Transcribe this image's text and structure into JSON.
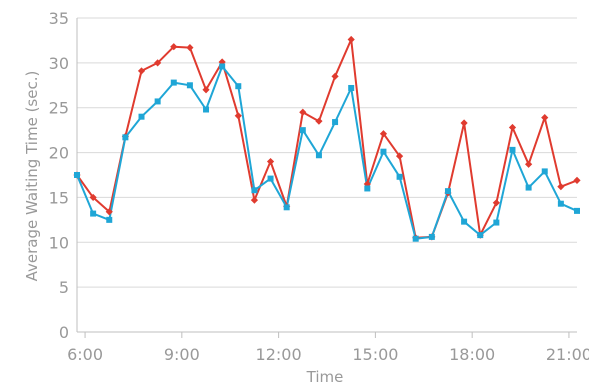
{
  "chart_data": {
    "type": "line",
    "xlabel": "Time",
    "ylabel": "Average Waiting Time (sec.)",
    "xlim": [
      "5:45",
      "21:15"
    ],
    "ylim": [
      0,
      35
    ],
    "y_ticks": [
      0,
      5,
      10,
      15,
      20,
      25,
      30,
      35
    ],
    "x_ticks": [
      "6:00",
      "9:00",
      "12:00",
      "15:00",
      "18:00",
      "21:00"
    ],
    "grid": "horizontal",
    "legend": "none",
    "x": [
      "5:45",
      "6:15",
      "6:45",
      "7:15",
      "7:45",
      "8:15",
      "8:45",
      "9:15",
      "9:45",
      "10:15",
      "10:45",
      "11:15",
      "11:45",
      "12:15",
      "12:45",
      "13:15",
      "13:45",
      "14:15",
      "14:45",
      "15:15",
      "15:45",
      "16:15",
      "16:45",
      "17:15",
      "17:45",
      "18:15",
      "18:45",
      "19:15",
      "19:45",
      "20:15",
      "20:45",
      "21:15"
    ],
    "series": [
      {
        "color": "#e03b2f",
        "marker": "diamond",
        "values": [
          17.5,
          15.0,
          13.4,
          21.8,
          29.1,
          30.0,
          31.8,
          31.7,
          27.0,
          30.1,
          24.1,
          14.7,
          19.0,
          14.0,
          24.5,
          23.5,
          28.5,
          32.6,
          16.5,
          22.1,
          19.6,
          10.5,
          10.6,
          15.5,
          23.3,
          10.8,
          14.4,
          22.8,
          18.7,
          23.9,
          16.2,
          16.9
        ]
      },
      {
        "color": "#1fa6d6",
        "marker": "square",
        "values": [
          17.5,
          13.2,
          12.5,
          21.7,
          24.0,
          25.7,
          27.8,
          27.5,
          24.8,
          29.6,
          27.4,
          15.8,
          17.1,
          13.9,
          22.5,
          19.7,
          23.4,
          27.2,
          16.0,
          20.1,
          17.3,
          10.4,
          10.6,
          15.7,
          12.3,
          10.8,
          12.2,
          20.3,
          16.1,
          17.9,
          14.3,
          13.5
        ]
      }
    ]
  }
}
